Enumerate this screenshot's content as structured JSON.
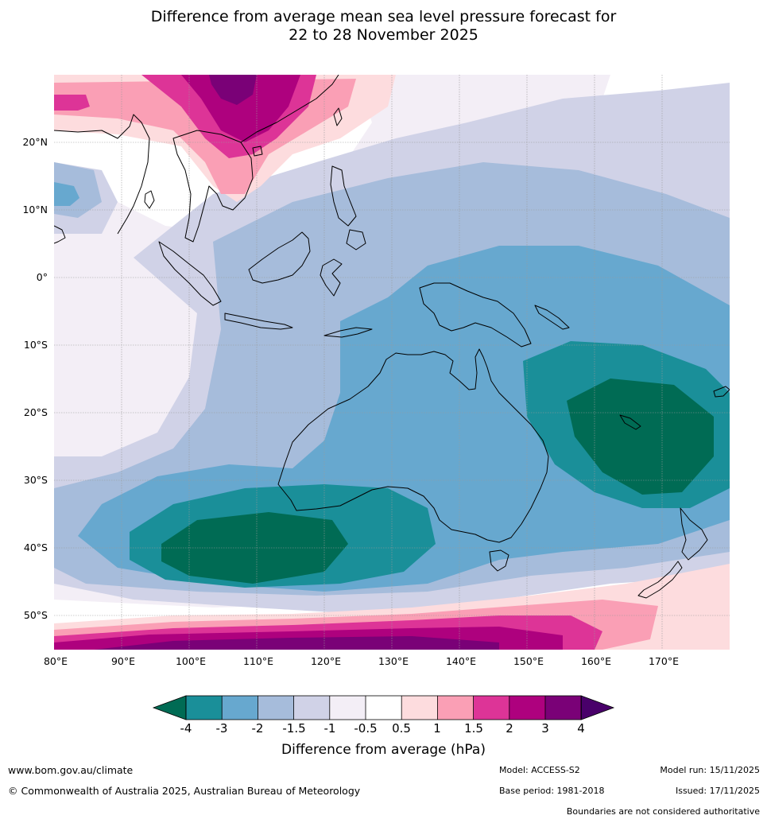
{
  "title": {
    "line1": "Difference from average mean sea level pressure forecast for",
    "line2": "22 to 28 November 2025"
  },
  "axes": {
    "lat_labels": [
      "20°N",
      "10°N",
      "0°",
      "10°S",
      "20°S",
      "30°S",
      "40°S",
      "50°S"
    ],
    "lon_labels": [
      "80°E",
      "90°E",
      "100°E",
      "110°E",
      "120°E",
      "130°E",
      "140°E",
      "150°E",
      "160°E",
      "170°E"
    ]
  },
  "colorbar": {
    "label": "Difference from average (hPa)",
    "ticks": [
      "-4",
      "-3",
      "-2",
      "-1.5",
      "-1",
      "-0.5",
      "0.5",
      "1",
      "1.5",
      "2",
      "3",
      "4"
    ],
    "colors": {
      "lt_m4": "#006b54",
      "m4_m3": "#1a8f99",
      "m3_m2": "#67a8cf",
      "m2_m15": "#a6bcdb",
      "m15_m1": "#d0d2e7",
      "m1_m05": "#f3eef6",
      "m05_05": "#ffffff",
      "p05_1": "#fddcde",
      "p1_15": "#fa9fb5",
      "p15_2": "#dd3497",
      "p2_3": "#ae017e",
      "p3_4": "#7a0177",
      "gt_4": "#49006a"
    }
  },
  "footer": {
    "website": "www.bom.gov.au/climate",
    "copyright": "© Commonwealth of Australia 2025, Australian Bureau of Meteorology",
    "model": "Model: ACCESS-S2",
    "base_period": "Base period: 1981-2018",
    "model_run": "Model run: 15/11/2025",
    "issued": "Issued: 17/11/2025",
    "disclaimer": "Boundaries are not considered authoritative"
  }
}
